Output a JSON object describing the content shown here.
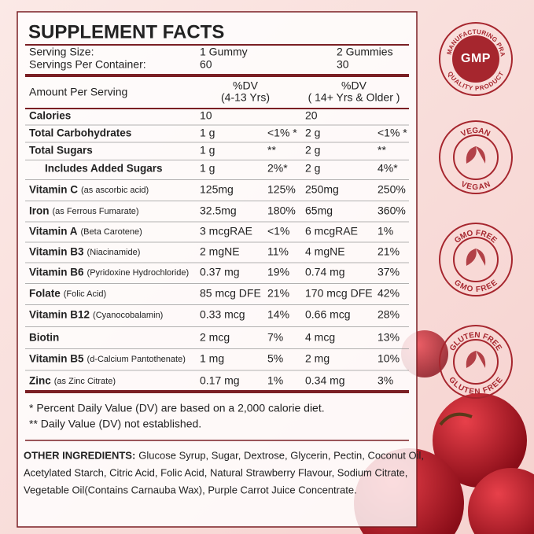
{
  "header": {
    "title": "SUPPLEMENT FACTS",
    "serving": [
      [
        "Serving Size:",
        "1 Gummy",
        "2 Gummies"
      ],
      [
        "Servings Per Container:",
        "60",
        "30"
      ]
    ]
  },
  "columns": {
    "amount": "Amount Per Serving",
    "dv1": [
      "%DV",
      "(4-13 Yrs)"
    ],
    "dv2": [
      "%DV",
      "( 14+ Yrs & Older )"
    ]
  },
  "rows": [
    {
      "name": "Calories",
      "a1": "10",
      "a2": "20"
    },
    {
      "name": "Total Carbohydrates",
      "a1": "1 g",
      "d1": "<1% *",
      "a2": "2 g",
      "d2": "<1% *"
    },
    {
      "name": "Total Sugars",
      "a1": "1 g",
      "d1": "**",
      "a2": "2 g",
      "d2": "**"
    },
    {
      "name": "Includes Added Sugars",
      "a1": "1 g",
      "d1": "2%*",
      "a2": "2 g",
      "d2": "4%*"
    },
    {
      "name": "Vitamin C",
      "note": "(as ascorbic acid)",
      "a1": "125mg",
      "d1": "125%",
      "a2": "250mg",
      "d2": "250%"
    },
    {
      "name": "Iron",
      "note": "(as Ferrous Fumarate)",
      "a1": "32.5mg",
      "d1": "180%",
      "a2": "65mg",
      "d2": "360%"
    },
    {
      "name": "Vitamin A",
      "note": "(Beta Carotene)",
      "a1": "3 mcgRAE",
      "d1": "<1%",
      "a2": "6 mcgRAE",
      "d2": "1%"
    },
    {
      "name": "Vitamin B3",
      "note": "(Niacinamide)",
      "a1": "2 mgNE",
      "d1": "11%",
      "a2": "4 mgNE",
      "d2": "21%"
    },
    {
      "name": "Vitamin B6",
      "note": "(Pyridoxine Hydrochloride)",
      "a1": "0.37 mg",
      "d1": "19%",
      "a2": "0.74 mg",
      "d2": "37%"
    },
    {
      "name": "Folate",
      "note": "(Folic Acid)",
      "a1": "85 mcg DFE",
      "d1": "21%",
      "a2": "170 mcg DFE",
      "d2": "42%"
    },
    {
      "name": "Vitamin B12",
      "note": "(Cyanocobalamin)",
      "a1": "0.33 mcg",
      "d1": "14%",
      "a2": "0.66 mcg",
      "d2": "28%"
    },
    {
      "name": "Biotin",
      "a1": "2 mcg",
      "d1": "7%",
      "a2": "4 mcg",
      "d2": "13%"
    },
    {
      "name": "Vitamin B5",
      "note": "(d-Calcium Pantothenate)",
      "a1": "1 mg",
      "d1": "5%",
      "a2": "2 mg",
      "d2": "10%"
    },
    {
      "name": "Zinc",
      "note": "(as Zinc Citrate)",
      "a1": "0.17 mg",
      "d1": "1%",
      "a2": "0.34 mg",
      "d2": "3%"
    }
  ],
  "footnotes": [
    "* Percent Daily Value (DV) are based on a 2,000 calorie diet.",
    "** Daily Value (DV) not established."
  ],
  "ingredients": {
    "label": "OTHER INGREDIENTS:",
    "lines": [
      "Glucose Syrup, Sugar, Dextrose, Glycerin, Pectin, Coconut Oil,",
      "Acetylated Starch, Citric Acid, Folic Acid, Natural Strawberry Flavour, Sodium Citrate,",
      "Vegetable Oil(Contains Carnauba Wax), Purple Carrot Juice Concentrate."
    ]
  },
  "badges": {
    "gmp": {
      "top": "GOOD MANUFACTURING PRACTICE",
      "center": "GMP",
      "bottom": "QUALITY PRODUCT"
    },
    "vegan": {
      "top": "VEGAN",
      "bottom": "VEGAN"
    },
    "gmo": {
      "top": "GMO FREE",
      "bottom": "GMO FREE"
    },
    "gluten": {
      "top": "GLUTEN FREE",
      "bottom": "GLUTEN FREE"
    }
  }
}
